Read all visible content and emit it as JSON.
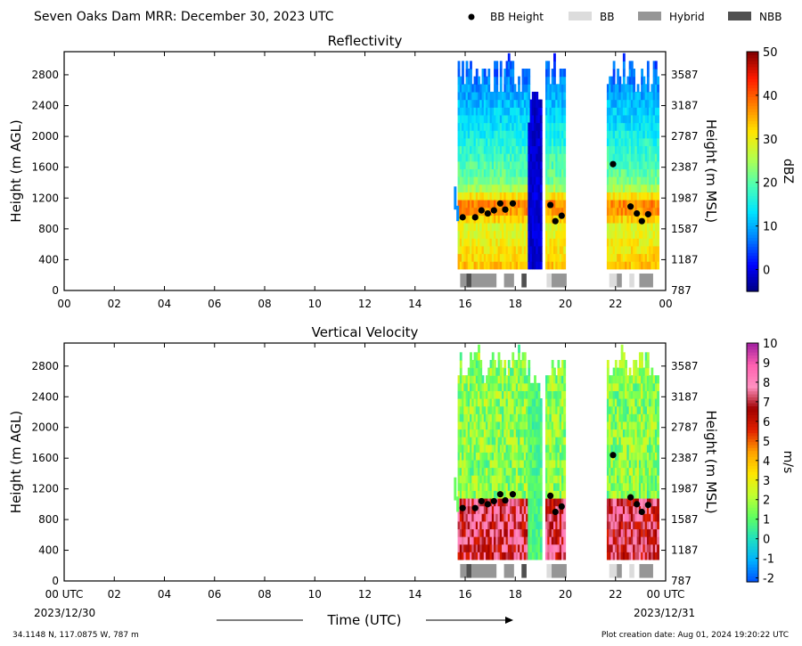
{
  "header": {
    "title": "Seven Oaks Dam MRR:  December 30, 2023 UTC",
    "legend": [
      {
        "label": "BB Height",
        "kind": "dot",
        "color": "#000000"
      },
      {
        "label": "BB",
        "kind": "rect",
        "color": "#dcdcdc"
      },
      {
        "label": "Hybrid",
        "kind": "rect",
        "color": "#969696"
      },
      {
        "label": "NBB",
        "kind": "rect",
        "color": "#505050"
      }
    ]
  },
  "footer": {
    "location": "34.1148 N, 117.0875 W, 787 m",
    "creation": "Plot creation date: Aug 01, 2024 19:20:22 UTC",
    "xlabel": "Time (UTC)",
    "start_date": "2023/12/30",
    "end_date": "2023/12/31"
  },
  "chart_data": [
    {
      "type": "heatmap",
      "title": "Reflectivity",
      "ylabel": "Height (m AGL)",
      "ylabel_right": "Height (m MSL)",
      "colorbar_label": "dBZ",
      "xlim": [
        0,
        24
      ],
      "ylim": [
        0,
        3100
      ],
      "x_ticks": [
        "00",
        "02",
        "04",
        "06",
        "08",
        "10",
        "12",
        "14",
        "16",
        "18",
        "20",
        "22",
        "00"
      ],
      "y_ticks": [
        0,
        400,
        800,
        1200,
        1600,
        2000,
        2400,
        2800
      ],
      "y_ticks_right": [
        787,
        1187,
        1587,
        1987,
        2387,
        2787,
        3187,
        3587
      ],
      "colorbar_range": [
        -5,
        50
      ],
      "colorbar_ticks": [
        0,
        10,
        20,
        30,
        40,
        50
      ],
      "colormap": [
        "#00007f",
        "#0000ff",
        "#0080ff",
        "#00e5ff",
        "#4dffb3",
        "#b3ff4d",
        "#ffe600",
        "#ff8000",
        "#ff1a00",
        "#7f0000"
      ],
      "bb_height": [
        {
          "x": 15.9,
          "y": 950
        },
        {
          "x": 16.4,
          "y": 950
        },
        {
          "x": 16.65,
          "y": 1040
        },
        {
          "x": 16.9,
          "y": 1000
        },
        {
          "x": 17.15,
          "y": 1040
        },
        {
          "x": 17.4,
          "y": 1130
        },
        {
          "x": 17.6,
          "y": 1050
        },
        {
          "x": 17.9,
          "y": 1130
        },
        {
          "x": 19.4,
          "y": 1110
        },
        {
          "x": 19.6,
          "y": 900
        },
        {
          "x": 19.85,
          "y": 970
        },
        {
          "x": 21.9,
          "y": 1640
        },
        {
          "x": 22.6,
          "y": 1090
        },
        {
          "x": 22.85,
          "y": 1000
        },
        {
          "x": 23.05,
          "y": 900
        },
        {
          "x": 23.3,
          "y": 990
        }
      ],
      "bb_type": [
        {
          "start": 15.8,
          "end": 16.05,
          "type": "Hybrid"
        },
        {
          "start": 16.05,
          "end": 16.25,
          "type": "NBB"
        },
        {
          "start": 16.25,
          "end": 17.25,
          "type": "Hybrid"
        },
        {
          "start": 17.55,
          "end": 17.95,
          "type": "Hybrid"
        },
        {
          "start": 18.25,
          "end": 18.45,
          "type": "NBB"
        },
        {
          "start": 19.25,
          "end": 19.45,
          "type": "BB"
        },
        {
          "start": 19.45,
          "end": 20.05,
          "type": "Hybrid"
        },
        {
          "start": 21.75,
          "end": 22.05,
          "type": "BB"
        },
        {
          "start": 22.05,
          "end": 22.25,
          "type": "Hybrid"
        },
        {
          "start": 22.55,
          "end": 22.75,
          "type": "BB"
        },
        {
          "start": 22.95,
          "end": 23.5,
          "type": "Hybrid"
        }
      ]
    },
    {
      "type": "heatmap",
      "title": "Vertical Velocity",
      "ylabel": "Height (m AGL)",
      "ylabel_right": "Height (m MSL)",
      "colorbar_label": "m/s",
      "xlim": [
        0,
        24
      ],
      "ylim": [
        0,
        3100
      ],
      "x_ticks": [
        "00 UTC",
        "02",
        "04",
        "06",
        "08",
        "10",
        "12",
        "14",
        "16",
        "18",
        "20",
        "22",
        "00 UTC"
      ],
      "y_ticks": [
        0,
        400,
        800,
        1200,
        1600,
        2000,
        2400,
        2800
      ],
      "y_ticks_right": [
        787,
        1187,
        1587,
        1987,
        2387,
        2787,
        3187,
        3587
      ],
      "colorbar_range": [
        -2.2,
        10
      ],
      "colorbar_ticks": [
        -2,
        -1,
        0,
        1,
        2,
        3,
        4,
        5,
        6,
        7,
        8,
        9,
        10
      ],
      "colormap": [
        "#0050ff",
        "#00b0ff",
        "#20e0c0",
        "#60ff60",
        "#c0ff30",
        "#ffe600",
        "#ffa000",
        "#e02000",
        "#a00000",
        "#ff90c0",
        "#ff60b0",
        "#a020a0"
      ],
      "bb_height": [
        {
          "x": 15.9,
          "y": 950
        },
        {
          "x": 16.4,
          "y": 950
        },
        {
          "x": 16.65,
          "y": 1040
        },
        {
          "x": 16.9,
          "y": 1000
        },
        {
          "x": 17.15,
          "y": 1040
        },
        {
          "x": 17.4,
          "y": 1130
        },
        {
          "x": 17.6,
          "y": 1050
        },
        {
          "x": 17.9,
          "y": 1130
        },
        {
          "x": 19.4,
          "y": 1110
        },
        {
          "x": 19.6,
          "y": 900
        },
        {
          "x": 19.85,
          "y": 970
        },
        {
          "x": 21.9,
          "y": 1640
        },
        {
          "x": 22.6,
          "y": 1090
        },
        {
          "x": 22.85,
          "y": 1000
        },
        {
          "x": 23.05,
          "y": 900
        },
        {
          "x": 23.3,
          "y": 990
        }
      ],
      "bb_type": [
        {
          "start": 15.8,
          "end": 16.05,
          "type": "Hybrid"
        },
        {
          "start": 16.05,
          "end": 16.25,
          "type": "NBB"
        },
        {
          "start": 16.25,
          "end": 17.25,
          "type": "Hybrid"
        },
        {
          "start": 17.55,
          "end": 17.95,
          "type": "Hybrid"
        },
        {
          "start": 18.25,
          "end": 18.45,
          "type": "NBB"
        },
        {
          "start": 19.25,
          "end": 19.45,
          "type": "BB"
        },
        {
          "start": 19.45,
          "end": 20.05,
          "type": "Hybrid"
        },
        {
          "start": 21.75,
          "end": 22.05,
          "type": "BB"
        },
        {
          "start": 22.05,
          "end": 22.25,
          "type": "Hybrid"
        },
        {
          "start": 22.55,
          "end": 22.75,
          "type": "BB"
        },
        {
          "start": 22.95,
          "end": 23.5,
          "type": "Hybrid"
        }
      ]
    }
  ]
}
